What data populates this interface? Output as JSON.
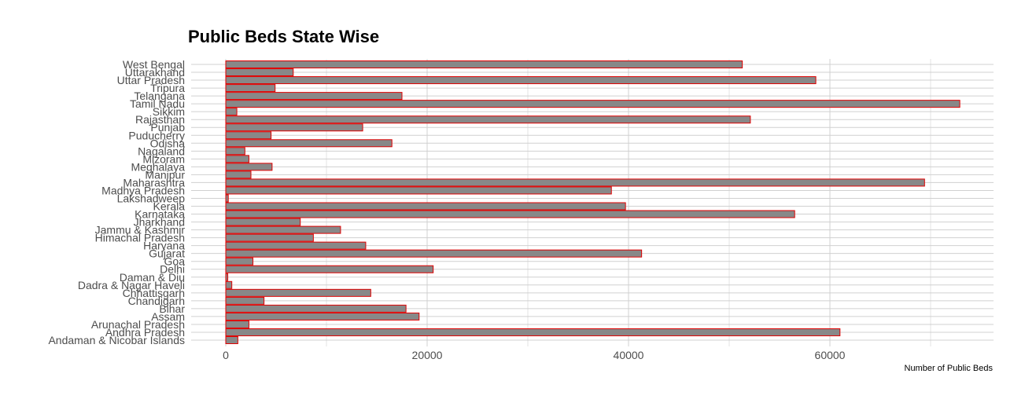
{
  "chart_data": {
    "type": "bar",
    "orientation": "horizontal",
    "title": "Public Beds State Wise",
    "xlabel": "Number of Public Beds",
    "ylabel": "",
    "xlim": [
      0,
      76000
    ],
    "x_ticks": [
      0,
      20000,
      40000,
      60000
    ],
    "x_tick_labels": [
      "0",
      "20000",
      "40000",
      "60000"
    ],
    "grid": true,
    "legend": "none",
    "bar_fill": "#888888",
    "bar_stroke": "#e00000",
    "grid_color": "#d0d0d0",
    "categories": [
      "Andaman & Nicobar Islands",
      "Andhra Pradesh",
      "Arunachal Pradesh",
      "Assam",
      "Bihar",
      "Chandigarh",
      "Chhattisgarh",
      "Dadra & Nagar Haveli",
      "Daman & Diu",
      "Delhi",
      "Goa",
      "Gujarat",
      "Haryana",
      "Himachal Pradesh",
      "Jammu & Kashmir",
      "Jharkhand",
      "Karnataka",
      "Kerala",
      "Lakshadweep",
      "Madhya Pradesh",
      "Maharashtra",
      "Manipur",
      "Meghalaya",
      "Mizoram",
      "Nagaland",
      "Odisha",
      "Puducherry",
      "Punjab",
      "Rajasthan",
      "Sikkim",
      "Tamil Nadu",
      "Telangana",
      "Tripura",
      "Uttar Pradesh",
      "Uttarakhand",
      "West Bengal"
    ],
    "values": [
      1200,
      61000,
      2300,
      19200,
      17900,
      3800,
      14400,
      600,
      200,
      20600,
      2700,
      41300,
      13900,
      8700,
      11400,
      7400,
      56500,
      39700,
      250,
      38300,
      69400,
      2500,
      4600,
      2300,
      1900,
      16500,
      4500,
      13600,
      52100,
      1100,
      72900,
      17500,
      4900,
      58600,
      6700,
      51300
    ]
  }
}
